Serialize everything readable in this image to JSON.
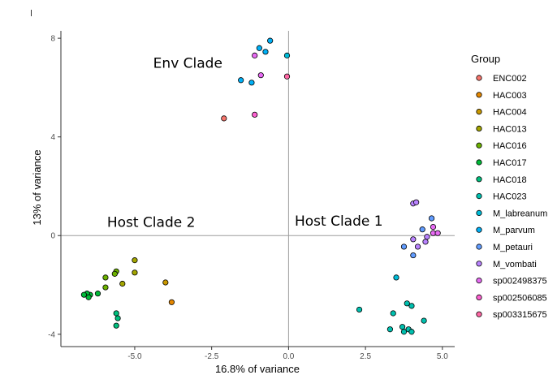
{
  "chart_data": {
    "type": "scatter",
    "title": "",
    "xlabel": "16.8% of variance",
    "ylabel": "13% of variance",
    "xlim": [
      -7.4,
      5.4
    ],
    "ylim": [
      -4.5,
      8.3
    ],
    "x_ticks": [
      -5.0,
      -2.5,
      0.0,
      2.5,
      5.0
    ],
    "x_tick_labels": [
      "-5.0",
      "-2.5",
      "0.0",
      "2.5",
      "5.0"
    ],
    "y_ticks": [
      -4,
      0,
      4,
      8
    ],
    "y_tick_labels": [
      "-4",
      "0",
      "4",
      "8"
    ],
    "reference_lines": {
      "x": 0,
      "y": 0
    },
    "grid": false,
    "legend": {
      "title": "Group",
      "position": "right"
    },
    "annotations": [
      {
        "text": "Env Clade",
        "x": -4.4,
        "y": 6.8
      },
      {
        "text": "Host Clade 2",
        "x": -5.9,
        "y": 0.35
      },
      {
        "text": "Host Clade 1",
        "x": 0.2,
        "y": 0.4
      }
    ],
    "series": [
      {
        "name": "ENC002",
        "color": "#F8766D",
        "points": [
          {
            "x": -2.1,
            "y": 4.75
          }
        ]
      },
      {
        "name": "HAC003",
        "color": "#E58700",
        "points": [
          {
            "x": -3.8,
            "y": -2.7
          }
        ]
      },
      {
        "name": "HAC004",
        "color": "#C99800",
        "points": [
          {
            "x": -4.0,
            "y": -1.9
          }
        ]
      },
      {
        "name": "HAC013",
        "color": "#A3A500",
        "points": [
          {
            "x": -5.0,
            "y": -1.0
          },
          {
            "x": -5.0,
            "y": -1.5
          },
          {
            "x": -5.4,
            "y": -1.95
          }
        ]
      },
      {
        "name": "HAC016",
        "color": "#6BB100",
        "points": [
          {
            "x": -5.6,
            "y": -1.45
          },
          {
            "x": -5.65,
            "y": -1.55
          },
          {
            "x": -5.95,
            "y": -1.7
          },
          {
            "x": -5.95,
            "y": -2.1
          }
        ]
      },
      {
        "name": "HAC017",
        "color": "#00BA38",
        "points": [
          {
            "x": -6.2,
            "y": -2.35
          },
          {
            "x": -6.45,
            "y": -2.4
          },
          {
            "x": -6.55,
            "y": -2.35
          },
          {
            "x": -6.5,
            "y": -2.5
          },
          {
            "x": -6.65,
            "y": -2.4
          }
        ]
      },
      {
        "name": "HAC018",
        "color": "#00BF7D",
        "points": [
          {
            "x": -5.6,
            "y": -3.15
          },
          {
            "x": -5.55,
            "y": -3.35
          },
          {
            "x": -5.6,
            "y": -3.65
          }
        ]
      },
      {
        "name": "HAC023",
        "color": "#00C0AF",
        "points": [
          {
            "x": 2.3,
            "y": -3.0
          },
          {
            "x": 3.3,
            "y": -3.8
          },
          {
            "x": 3.4,
            "y": -3.15
          },
          {
            "x": 3.7,
            "y": -3.7
          },
          {
            "x": 3.75,
            "y": -3.9
          },
          {
            "x": 3.85,
            "y": -2.75
          },
          {
            "x": 3.9,
            "y": -3.8
          },
          {
            "x": 4.0,
            "y": -3.9
          },
          {
            "x": 4.0,
            "y": -2.85
          },
          {
            "x": 4.4,
            "y": -3.45
          }
        ]
      },
      {
        "name": "M_labreanum",
        "color": "#00BCD8",
        "points": [
          {
            "x": 3.5,
            "y": -1.7
          },
          {
            "x": -0.05,
            "y": 7.3
          }
        ]
      },
      {
        "name": "M_parvum",
        "color": "#00B0F6",
        "points": [
          {
            "x": -0.6,
            "y": 7.9
          },
          {
            "x": -0.75,
            "y": 7.45
          },
          {
            "x": -0.95,
            "y": 7.6
          },
          {
            "x": -1.2,
            "y": 6.2
          },
          {
            "x": -1.55,
            "y": 6.3
          }
        ]
      },
      {
        "name": "M_petauri",
        "color": "#619CFF",
        "points": [
          {
            "x": 4.65,
            "y": 0.7
          },
          {
            "x": 4.35,
            "y": 0.25
          },
          {
            "x": 3.75,
            "y": -0.45
          },
          {
            "x": 4.05,
            "y": -0.8
          }
        ]
      },
      {
        "name": "M_vombati",
        "color": "#B983FF",
        "points": [
          {
            "x": 4.05,
            "y": 1.3
          },
          {
            "x": 4.15,
            "y": 1.35
          },
          {
            "x": 4.5,
            "y": -0.05
          },
          {
            "x": 4.45,
            "y": -0.25
          },
          {
            "x": 4.2,
            "y": -0.45
          },
          {
            "x": 4.05,
            "y": -0.15
          }
        ]
      },
      {
        "name": "sp002498375",
        "color": "#E76BF3",
        "points": [
          {
            "x": 4.7,
            "y": 0.35
          },
          {
            "x": 4.7,
            "y": 0.1
          },
          {
            "x": 4.85,
            "y": 0.1
          },
          {
            "x": -1.1,
            "y": 7.3
          },
          {
            "x": -0.9,
            "y": 6.5
          }
        ]
      },
      {
        "name": "sp002506085",
        "color": "#FD61D1",
        "points": [
          {
            "x": -1.1,
            "y": 4.9
          }
        ]
      },
      {
        "name": "sp003315675",
        "color": "#FF67A4",
        "points": [
          {
            "x": -0.05,
            "y": 6.45
          }
        ]
      }
    ]
  }
}
